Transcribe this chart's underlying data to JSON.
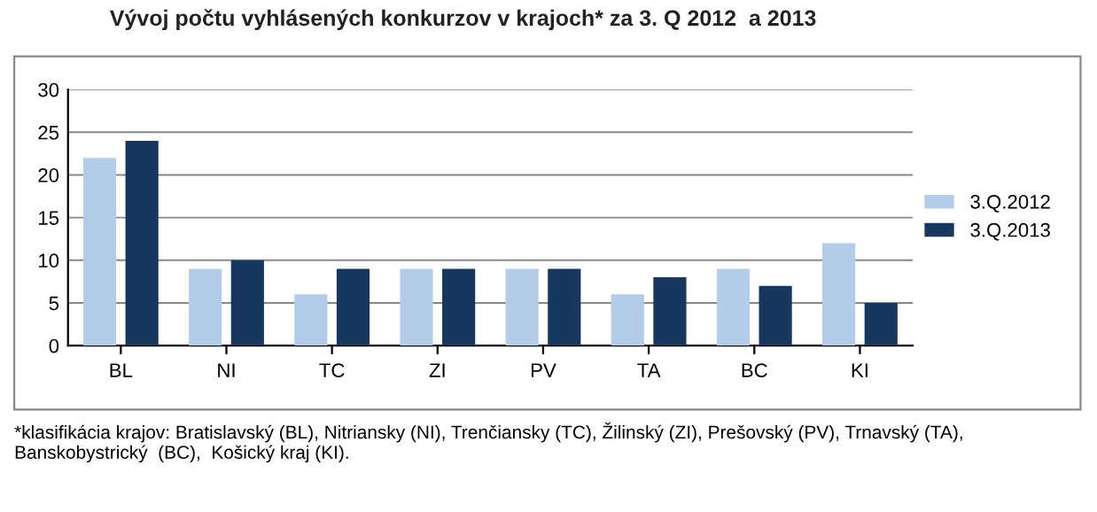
{
  "chart_data": {
    "type": "bar",
    "title": "Vývoj počtu vyhlásených konkurzov v krajoch* za 3. Q 2012  a 2013",
    "categories": [
      "BL",
      "NI",
      "TC",
      "ZI",
      "PV",
      "TA",
      "BC",
      "KI"
    ],
    "series": [
      {
        "name": "3.Q.2012",
        "color": "#b3cde9",
        "values": [
          22,
          9,
          6,
          9,
          9,
          6,
          9,
          12
        ]
      },
      {
        "name": "3.Q.2013",
        "color": "#17375e",
        "values": [
          24,
          10,
          9,
          9,
          9,
          8,
          7,
          5
        ]
      }
    ],
    "ylim": [
      0,
      30
    ],
    "yticks": [
      0,
      5,
      10,
      15,
      20,
      25,
      30
    ],
    "grid": "y",
    "legend": "right",
    "annotations": [
      "*klasifikácia krajov: Bratislavský (BL), Nitriansky (NI), Trenčiansky (TC), Žilinský (ZI), Prešovský (PV), Trnavský (TA), Banskobystrický  (BC),  Košický kraj (KI)."
    ]
  }
}
